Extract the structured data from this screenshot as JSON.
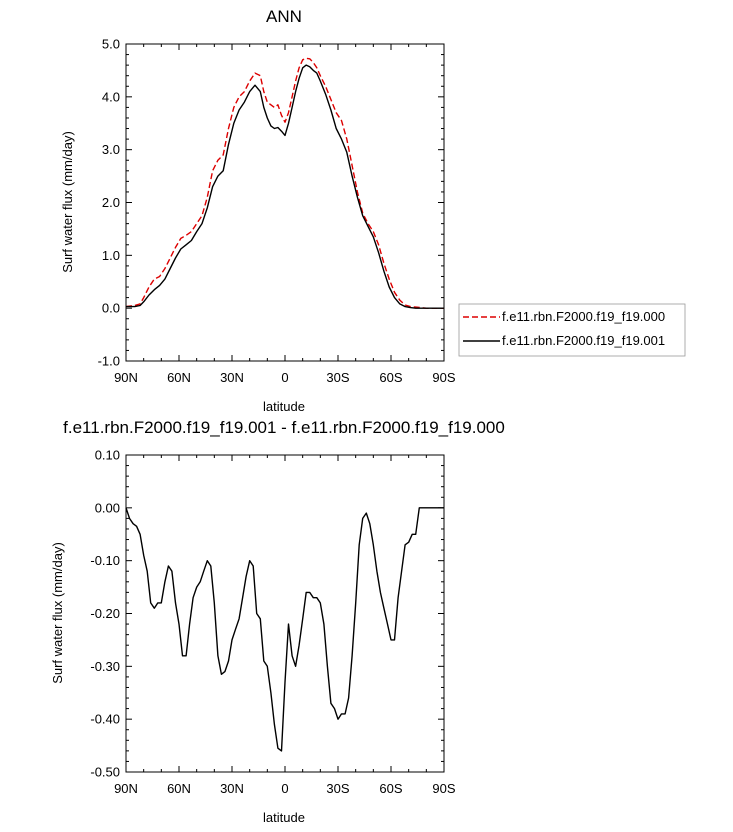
{
  "chart_data": [
    {
      "type": "line",
      "title": "ANN",
      "xlabel": "latitude",
      "ylabel": "Surf water flux (mm/day)",
      "xlim": [
        90,
        -90
      ],
      "ylim": [
        -1.0,
        5.0
      ],
      "yticks": [
        "-1.0",
        "0.0",
        "1.0",
        "2.0",
        "3.0",
        "4.0",
        "5.0"
      ],
      "ytick_values": [
        -1.0,
        0.0,
        1.0,
        2.0,
        3.0,
        4.0,
        5.0
      ],
      "xticks": [
        "90N",
        "60N",
        "30N",
        "0",
        "30S",
        "60S",
        "90S"
      ],
      "xtick_values": [
        90,
        60,
        30,
        0,
        -30,
        -60,
        -90
      ],
      "legend_position": "right",
      "grid": false,
      "series": [
        {
          "name": "f.e11.rbn.F2000.f19_f19.000",
          "color": "#dd0000",
          "dash": true,
          "x": [
            90,
            85,
            82,
            80,
            77,
            74,
            71,
            68,
            65,
            62,
            59,
            56,
            53,
            50,
            47,
            44,
            41,
            38,
            35,
            32,
            29,
            26,
            23,
            20,
            17,
            14,
            12,
            10,
            8,
            6,
            4,
            2,
            0,
            -2,
            -4,
            -6,
            -8,
            -10,
            -12,
            -14,
            -16,
            -18,
            -20,
            -23,
            -26,
            -29,
            -32,
            -35,
            -38,
            -41,
            -44,
            -47,
            -50,
            -53,
            -56,
            -59,
            -62,
            -65,
            -68,
            -71,
            -74,
            -77,
            -80,
            -83,
            -86,
            -90
          ],
          "y": [
            0.03,
            0.05,
            0.08,
            0.2,
            0.4,
            0.55,
            0.6,
            0.75,
            0.95,
            1.15,
            1.32,
            1.38,
            1.45,
            1.6,
            1.75,
            2.1,
            2.6,
            2.8,
            2.9,
            3.4,
            3.8,
            4.0,
            4.1,
            4.3,
            4.45,
            4.4,
            4.1,
            3.9,
            3.85,
            3.8,
            3.85,
            3.65,
            3.52,
            3.7,
            4.0,
            4.3,
            4.55,
            4.7,
            4.73,
            4.72,
            4.65,
            4.55,
            4.4,
            4.2,
            3.95,
            3.7,
            3.55,
            3.2,
            2.7,
            2.2,
            1.8,
            1.6,
            1.45,
            1.2,
            0.85,
            0.55,
            0.3,
            0.15,
            0.06,
            0.03,
            0.02,
            0.01,
            0.0,
            0.0,
            0.0,
            0.0
          ]
        },
        {
          "name": "f.e11.rbn.F2000.f19_f19.001",
          "color": "#000000",
          "dash": false,
          "x": [
            90,
            85,
            82,
            80,
            77,
            74,
            71,
            68,
            65,
            62,
            59,
            56,
            53,
            50,
            47,
            44,
            41,
            38,
            35,
            32,
            29,
            26,
            23,
            20,
            17,
            14,
            12,
            10,
            8,
            6,
            4,
            2,
            0,
            -2,
            -4,
            -6,
            -8,
            -10,
            -12,
            -14,
            -16,
            -18,
            -20,
            -23,
            -26,
            -29,
            -32,
            -35,
            -38,
            -41,
            -44,
            -47,
            -50,
            -53,
            -56,
            -59,
            -62,
            -65,
            -68,
            -71,
            -74,
            -77,
            -80,
            -83,
            -86,
            -90
          ],
          "y": [
            0.03,
            0.03,
            0.05,
            0.12,
            0.25,
            0.35,
            0.43,
            0.55,
            0.75,
            0.95,
            1.12,
            1.2,
            1.28,
            1.45,
            1.6,
            1.9,
            2.3,
            2.5,
            2.6,
            3.1,
            3.5,
            3.75,
            3.9,
            4.1,
            4.22,
            4.1,
            3.8,
            3.6,
            3.45,
            3.4,
            3.42,
            3.35,
            3.27,
            3.5,
            3.8,
            4.1,
            4.35,
            4.55,
            4.6,
            4.57,
            4.5,
            4.45,
            4.3,
            4.05,
            3.75,
            3.4,
            3.2,
            2.95,
            2.5,
            2.1,
            1.75,
            1.55,
            1.35,
            1.05,
            0.7,
            0.4,
            0.2,
            0.08,
            0.03,
            0.01,
            0.0,
            0.0,
            0.0,
            0.0,
            0.0,
            0.0
          ]
        }
      ]
    },
    {
      "type": "line",
      "title": "f.e11.rbn.F2000.f19_f19.001 - f.e11.rbn.F2000.f19_f19.000",
      "xlabel": "latitude",
      "ylabel": "Surf water flux (mm/day)",
      "xlim": [
        90,
        -90
      ],
      "ylim": [
        -0.5,
        0.1
      ],
      "yticks": [
        "-0.50",
        "-0.40",
        "-0.30",
        "-0.20",
        "-0.10",
        "0.00",
        "0.10"
      ],
      "ytick_values": [
        -0.5,
        -0.4,
        -0.3,
        -0.2,
        -0.1,
        0.0,
        0.1
      ],
      "xticks": [
        "90N",
        "60N",
        "30N",
        "0",
        "30S",
        "60S",
        "90S"
      ],
      "xtick_values": [
        90,
        60,
        30,
        0,
        -30,
        -60,
        -90
      ],
      "grid": false,
      "series": [
        {
          "color": "#000000",
          "x": [
            90,
            88,
            86,
            84,
            82,
            80,
            78,
            76,
            74,
            72,
            70,
            68,
            66,
            64,
            62,
            60,
            58,
            56,
            54,
            52,
            50,
            48,
            46,
            44,
            42,
            40,
            38,
            36,
            34,
            32,
            30,
            28,
            26,
            24,
            22,
            20,
            18,
            16,
            14,
            12,
            10,
            8,
            6,
            4,
            2,
            0,
            -2,
            -4,
            -6,
            -8,
            -10,
            -12,
            -14,
            -16,
            -18,
            -20,
            -22,
            -24,
            -26,
            -28,
            -30,
            -32,
            -34,
            -36,
            -38,
            -40,
            -42,
            -44,
            -46,
            -48,
            -50,
            -52,
            -54,
            -56,
            -58,
            -60,
            -62,
            -64,
            -66,
            -68,
            -70,
            -72,
            -74,
            -76,
            -78,
            -80,
            -82,
            -84,
            -86,
            -88,
            -90
          ],
          "y": [
            0.0,
            -0.02,
            -0.03,
            -0.035,
            -0.05,
            -0.09,
            -0.12,
            -0.18,
            -0.19,
            -0.18,
            -0.18,
            -0.14,
            -0.11,
            -0.12,
            -0.18,
            -0.22,
            -0.28,
            -0.28,
            -0.22,
            -0.17,
            -0.15,
            -0.14,
            -0.12,
            -0.1,
            -0.11,
            -0.18,
            -0.28,
            -0.315,
            -0.31,
            -0.29,
            -0.25,
            -0.23,
            -0.21,
            -0.17,
            -0.13,
            -0.1,
            -0.11,
            -0.2,
            -0.21,
            -0.29,
            -0.3,
            -0.35,
            -0.41,
            -0.455,
            -0.46,
            -0.33,
            -0.22,
            -0.28,
            -0.3,
            -0.26,
            -0.21,
            -0.16,
            -0.16,
            -0.17,
            -0.17,
            -0.18,
            -0.22,
            -0.3,
            -0.37,
            -0.38,
            -0.4,
            -0.39,
            -0.39,
            -0.36,
            -0.28,
            -0.18,
            -0.07,
            -0.02,
            -0.01,
            -0.03,
            -0.07,
            -0.12,
            -0.16,
            -0.19,
            -0.22,
            -0.25,
            -0.25,
            -0.17,
            -0.12,
            -0.07,
            -0.065,
            -0.05,
            -0.05,
            0.0,
            0.0,
            0.0,
            0.0,
            0.0,
            0.0,
            0.0,
            0.0
          ]
        }
      ]
    }
  ]
}
